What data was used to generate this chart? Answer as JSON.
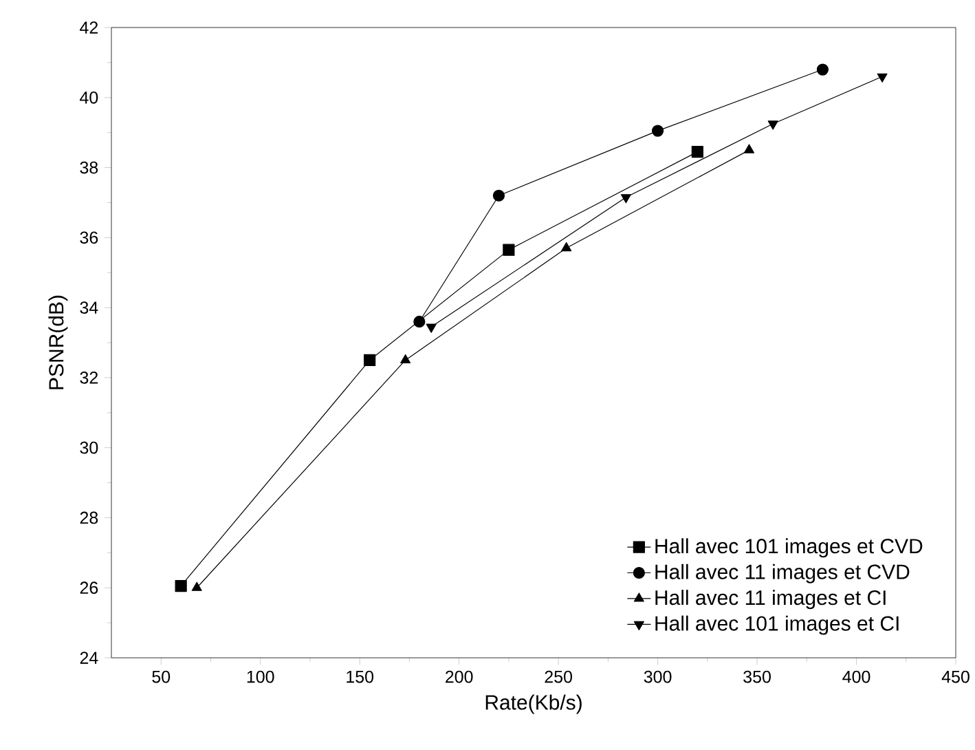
{
  "chart_data": {
    "type": "line",
    "xlabel": "Rate(Kb/s)",
    "ylabel": "PSNR(dB)",
    "xlim": [
      25,
      450
    ],
    "xticks": [
      50,
      100,
      150,
      200,
      250,
      300,
      350,
      400,
      450
    ],
    "ylim": [
      24,
      42
    ],
    "yticks": [
      24,
      26,
      28,
      30,
      32,
      34,
      36,
      38,
      40,
      42
    ],
    "grid": false,
    "legend": "bottom right",
    "series": [
      {
        "name": "Hall avec 101 images et CVD",
        "color": "#000000",
        "marker": "square",
        "x": [
          60,
          155,
          225,
          320
        ],
        "values": [
          26.05,
          32.5,
          35.65,
          38.45
        ]
      },
      {
        "name": "Hall avec 11 images et CVD",
        "color": "#000000",
        "marker": "circle",
        "x": [
          180,
          220,
          300,
          383
        ],
        "values": [
          33.6,
          37.2,
          39.05,
          40.8
        ]
      },
      {
        "name": "Hall avec 11 images et CI",
        "color": "#000000",
        "marker": "triangle",
        "x": [
          68,
          173,
          254,
          346
        ],
        "values": [
          26.0,
          32.5,
          35.7,
          38.5
        ]
      },
      {
        "name": "Hall avec 101 images et CI",
        "color": "#000000",
        "marker": "triangle-down",
        "x": [
          186,
          284,
          358,
          413
        ],
        "values": [
          33.45,
          37.15,
          39.25,
          40.6
        ]
      }
    ]
  }
}
